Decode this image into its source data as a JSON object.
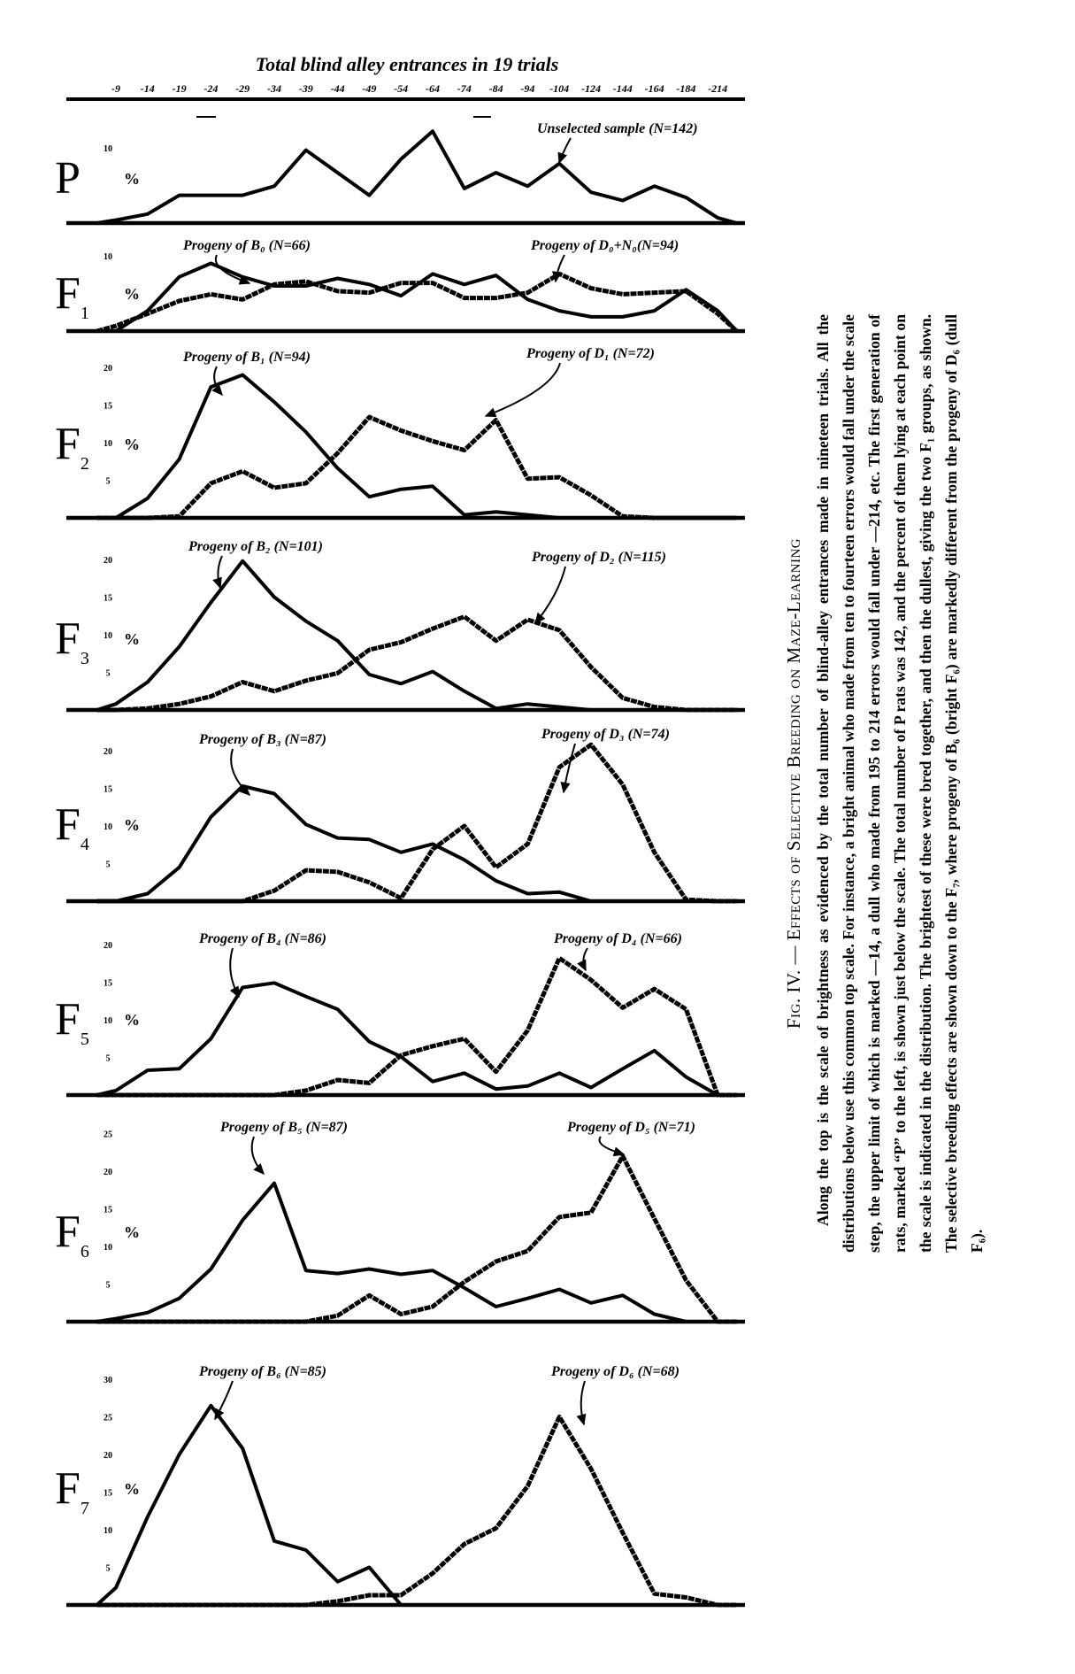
{
  "chart_data": {
    "type": "line",
    "title": "Total blind alley entrances in 19 trials",
    "x_tick_labels": [
      "-9",
      "-14",
      "-19",
      "-24",
      "-29",
      "-34",
      "-39",
      "-44",
      "-49",
      "-54",
      "-64",
      "-74",
      "-84",
      "-94",
      "-104",
      "-124",
      "-144",
      "-164",
      "-184",
      "-214"
    ],
    "y_unit": "%",
    "grid": false,
    "panels": [
      {
        "label": "P",
        "sub": "",
        "yticks": [
          "10"
        ],
        "ytick_values": [
          10
        ],
        "series": [
          {
            "name": "Unselected sample (N=142)",
            "style": "plain",
            "values": [
              0.4,
              1.2,
              3.7,
              3.7,
              3.7,
              4.9,
              9.7,
              6.7,
              3.7,
              8.5,
              12.2,
              4.6,
              6.7,
              4.9,
              7.9,
              4.1,
              3.0,
              4.9,
              3.4,
              0.7
            ]
          }
        ]
      },
      {
        "label": "F",
        "sub": "1",
        "yticks": [
          "10"
        ],
        "ytick_values": [
          10
        ],
        "series": [
          {
            "name": "Progeny of B₀ (N=66)",
            "style": "plain",
            "values": [
              0,
              2.7,
              7.2,
              9.0,
              7.2,
              6.0,
              6.0,
              7.0,
              6.2,
              4.7,
              7.6,
              6.2,
              7.4,
              4.2,
              2.7,
              1.9,
              1.9,
              2.7,
              5.5,
              2.7
            ]
          },
          {
            "name": "Progeny of D₀+N₀(N=94)",
            "style": "rough",
            "values": [
              0.7,
              2.3,
              4.0,
              4.9,
              4.2,
              6.2,
              6.6,
              5.3,
              5.1,
              6.4,
              6.4,
              4.4,
              4.4,
              5.1,
              7.6,
              5.7,
              4.9,
              5.1,
              5.3,
              2.3
            ]
          }
        ]
      },
      {
        "label": "F",
        "sub": "2",
        "yticks": [
          "20",
          "15",
          "10",
          "5"
        ],
        "ytick_values": [
          20,
          15,
          10,
          5
        ],
        "series": [
          {
            "name": "Progeny of B₁ (N=94)",
            "style": "plain",
            "values": [
              0,
              2.6,
              7.8,
              17.4,
              19.0,
              15.4,
              11.4,
              6.6,
              2.8,
              3.8,
              4.2,
              0.4,
              0.8,
              0.4,
              0,
              0,
              0,
              0,
              0,
              0
            ]
          },
          {
            "name": "Progeny of D₁ (N=72)",
            "style": "rough",
            "values": [
              0,
              0,
              0.2,
              4.6,
              6.2,
              4.0,
              4.6,
              8.6,
              13.4,
              11.6,
              10.2,
              9.0,
              13.0,
              5.2,
              5.4,
              3.0,
              0.2,
              0,
              0,
              0
            ]
          }
        ]
      },
      {
        "label": "F",
        "sub": "3",
        "yticks": [
          "20",
          "15",
          "10",
          "5"
        ],
        "ytick_values": [
          20,
          15,
          10,
          5
        ],
        "series": [
          {
            "name": "Progeny of B₂ (N=101)",
            "style": "plain",
            "values": [
              0.8,
              3.7,
              8.4,
              14.3,
              19.8,
              15.0,
              11.8,
              9.2,
              4.7,
              3.5,
              5.1,
              2.5,
              0.2,
              0.8,
              0.4,
              0,
              0,
              0,
              0,
              0
            ]
          },
          {
            "name": "Progeny of D₂ (N=115)",
            "style": "rough",
            "values": [
              0,
              0.2,
              0.8,
              1.8,
              3.7,
              2.5,
              3.9,
              4.9,
              8.0,
              9.0,
              10.8,
              12.4,
              9.2,
              12.0,
              10.6,
              5.7,
              1.6,
              0.4,
              0,
              0
            ]
          }
        ]
      },
      {
        "label": "F",
        "sub": "4",
        "yticks": [
          "20",
          "15",
          "10",
          "5"
        ],
        "ytick_values": [
          20,
          15,
          10,
          5
        ],
        "series": [
          {
            "name": "Progeny of B₃ (N=87)",
            "style": "plain",
            "values": [
              0,
              1.0,
              4.5,
              11.2,
              15.3,
              14.3,
              10.2,
              8.4,
              8.2,
              6.5,
              7.6,
              5.5,
              2.7,
              1.0,
              1.2,
              0,
              0,
              0,
              0,
              0
            ]
          },
          {
            "name": "Progeny of D₃ (N=74)",
            "style": "rough",
            "values": [
              0,
              0,
              0,
              0,
              0,
              1.4,
              4.1,
              3.9,
              2.5,
              0.4,
              6.9,
              10.0,
              4.5,
              7.6,
              17.8,
              20.8,
              15.5,
              6.5,
              0.2,
              0
            ]
          }
        ]
      },
      {
        "label": "F",
        "sub": "5",
        "yticks": [
          "20",
          "15",
          "10",
          "5"
        ],
        "ytick_values": [
          20,
          15,
          10,
          5
        ],
        "series": [
          {
            "name": "Progeny of B₄ (N=86)",
            "style": "plain",
            "values": [
              0.6,
              3.3,
              3.5,
              7.5,
              14.3,
              14.9,
              13.1,
              11.4,
              7.1,
              5.1,
              1.8,
              2.9,
              0.8,
              1.2,
              2.9,
              1.0,
              3.5,
              5.9,
              2.4,
              0
            ]
          },
          {
            "name": "Progeny of D₄ (N=66)",
            "style": "rough",
            "values": [
              0,
              0,
              0,
              0,
              0,
              0,
              0.6,
              2.0,
              1.6,
              5.3,
              6.5,
              7.5,
              3.1,
              8.6,
              18.2,
              15.3,
              11.6,
              14.1,
              11.4,
              0
            ]
          }
        ]
      },
      {
        "label": "F",
        "sub": "6",
        "yticks": [
          "25",
          "20",
          "15",
          "10",
          "5"
        ],
        "ytick_values": [
          25,
          20,
          15,
          10,
          5
        ],
        "series": [
          {
            "name": "Progeny of B₅ (N=87)",
            "style": "plain",
            "values": [
              0.4,
              1.2,
              3.1,
              7.0,
              13.5,
              18.4,
              6.8,
              6.4,
              7.0,
              6.3,
              6.8,
              4.5,
              2.0,
              3.1,
              4.3,
              2.5,
              3.5,
              1.0,
              0,
              0
            ]
          },
          {
            "name": "Progeny of D₅ (N=71)",
            "style": "rough",
            "values": [
              0,
              0,
              0,
              0,
              0,
              0,
              0,
              0.8,
              3.5,
              1.0,
              2.0,
              5.3,
              8.0,
              9.4,
              13.9,
              14.5,
              22.0,
              13.7,
              5.5,
              0
            ]
          }
        ]
      },
      {
        "label": "F",
        "sub": "7",
        "yticks": [
          "30",
          "25",
          "20",
          "15",
          "10",
          "5"
        ],
        "ytick_values": [
          30,
          25,
          20,
          15,
          10,
          5
        ],
        "series": [
          {
            "name": "Progeny of B₆ (N=85)",
            "style": "plain",
            "values": [
              2.3,
              11.7,
              20.0,
              26.5,
              20.8,
              8.5,
              7.3,
              3.1,
              5.0,
              0,
              0,
              0,
              0,
              0,
              0,
              0,
              0,
              0,
              0,
              0
            ]
          },
          {
            "name": "Progeny of D₆ (N=68)",
            "style": "rough",
            "values": [
              0,
              0,
              0,
              0,
              0,
              0,
              0,
              0.5,
              1.3,
              1.3,
              4.2,
              8.1,
              10.2,
              15.8,
              25.0,
              18.1,
              9.6,
              1.5,
              1.0,
              0
            ]
          }
        ]
      }
    ]
  },
  "caption": {
    "title": "Fig. IV. — Effects of Selective Breeding on Maze-Learning",
    "body": "Along the top is the scale of brightness as evidenced by the total number of blind-alley entrances made in nineteen trials. All the distributions below use this common top scale. For instance, a bright animal who made from ten to fourteen errors would fall under the scale step, the upper limit of which is marked —14, a dull who made from 195 to 214 errors would fall under —214, etc. The first generation of rats, marked “P” to the left, is shown just below the scale. The total number of P rats was 142, and the percent of them lying at each point on the scale is indicated in the distribution. The brightest of these were bred together, and then the dullest, giving the two F₁ groups, as shown. The selective breeding effects are shown down to the F₇, where progeny of B₆ (bright F₆) are markedly different from the progeny of D₆ (dull F₆)."
  }
}
